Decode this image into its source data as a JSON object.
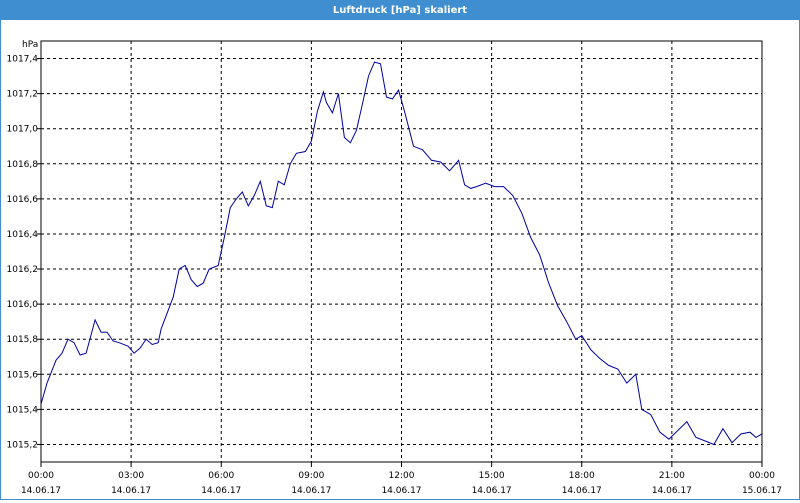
{
  "window": {
    "title": "Luftdruck [hPa] skaliert"
  },
  "chart_data": {
    "type": "line",
    "title": "Luftdruck [hPa] skaliert",
    "ylabel": "hPa",
    "xlabel": "",
    "ylim": [
      1015.1,
      1017.5
    ],
    "xlim_hours": [
      0,
      24
    ],
    "grid": true,
    "y_ticks": [
      "1015,2",
      "1015,4",
      "1015,6",
      "1015,8",
      "1016,0",
      "1016,2",
      "1016,4",
      "1016,6",
      "1016,8",
      "1017,0",
      "1017,2",
      "1017,4"
    ],
    "y_tick_values": [
      1015.2,
      1015.4,
      1015.6,
      1015.8,
      1016.0,
      1016.2,
      1016.4,
      1016.6,
      1016.8,
      1017.0,
      1017.2,
      1017.4
    ],
    "x_ticks": [
      {
        "time": "00:00",
        "date": "14.06.17"
      },
      {
        "time": "03:00",
        "date": "14.06.17"
      },
      {
        "time": "06:00",
        "date": "14.06.17"
      },
      {
        "time": "09:00",
        "date": "14.06.17"
      },
      {
        "time": "12:00",
        "date": "14.06.17"
      },
      {
        "time": "15:00",
        "date": "14.06.17"
      },
      {
        "time": "18:00",
        "date": "14.06.17"
      },
      {
        "time": "21:00",
        "date": "14.06.17"
      },
      {
        "time": "00:00",
        "date": "15.06.17"
      }
    ],
    "x_tick_hours": [
      0,
      3,
      6,
      9,
      12,
      15,
      18,
      21,
      24
    ],
    "line_color": "#0000a0",
    "series": [
      {
        "x": [
          0,
          0.2,
          0.5,
          0.7,
          0.9,
          1.1,
          1.3,
          1.5,
          1.8,
          2.0,
          2.2,
          2.4,
          2.6,
          2.9,
          3.1,
          3.3,
          3.5,
          3.7,
          3.9,
          4.0,
          4.2,
          4.4,
          4.6,
          4.8,
          5.0,
          5.2,
          5.4,
          5.6,
          5.9,
          6.1,
          6.3,
          6.5,
          6.7,
          6.9,
          7.1,
          7.3,
          7.5,
          7.7,
          7.9,
          8.1,
          8.3,
          8.5,
          8.8,
          9.0,
          9.2,
          9.4,
          9.5,
          9.7,
          9.9,
          10.1,
          10.3,
          10.5,
          10.7,
          10.9,
          11.1,
          11.3,
          11.5,
          11.7,
          11.9,
          12.1,
          12.4,
          12.7,
          13.0,
          13.3,
          13.6,
          13.9,
          14.1,
          14.3,
          14.5,
          14.8,
          15.1,
          15.4,
          15.7,
          16.0,
          16.3,
          16.6,
          16.9,
          17.2,
          17.5,
          17.8,
          18.0,
          18.3,
          18.6,
          18.9,
          19.2,
          19.5,
          19.8,
          20.0,
          20.3,
          20.6,
          20.9,
          21.2,
          21.5,
          21.8,
          22.1,
          22.4,
          22.7,
          23.0,
          23.3,
          23.6,
          23.8,
          24.0
        ],
        "y": [
          1015.43,
          1015.55,
          1015.68,
          1015.72,
          1015.8,
          1015.78,
          1015.71,
          1015.72,
          1015.91,
          1015.84,
          1015.84,
          1015.79,
          1015.78,
          1015.76,
          1015.72,
          1015.75,
          1015.8,
          1015.77,
          1015.78,
          1015.86,
          1015.95,
          1016.04,
          1016.2,
          1016.22,
          1016.14,
          1016.1,
          1016.12,
          1016.2,
          1016.22,
          1016.38,
          1016.55,
          1016.6,
          1016.64,
          1016.56,
          1016.62,
          1016.7,
          1016.56,
          1016.55,
          1016.7,
          1016.68,
          1016.8,
          1016.86,
          1016.87,
          1016.93,
          1017.1,
          1017.21,
          1017.15,
          1017.09,
          1017.2,
          1016.95,
          1016.92,
          1016.99,
          1017.14,
          1017.3,
          1017.38,
          1017.37,
          1017.18,
          1017.17,
          1017.22,
          1017.1,
          1016.9,
          1016.88,
          1016.82,
          1016.81,
          1016.76,
          1016.82,
          1016.68,
          1016.66,
          1016.67,
          1016.69,
          1016.67,
          1016.67,
          1016.62,
          1016.52,
          1016.38,
          1016.28,
          1016.12,
          1015.99,
          1015.9,
          1015.8,
          1015.82,
          1015.74,
          1015.69,
          1015.65,
          1015.63,
          1015.55,
          1015.6,
          1015.4,
          1015.37,
          1015.27,
          1015.23,
          1015.28,
          1015.33,
          1015.24,
          1015.22,
          1015.2,
          1015.29,
          1015.21,
          1015.26,
          1015.27,
          1015.24,
          1015.26
        ]
      }
    ]
  }
}
